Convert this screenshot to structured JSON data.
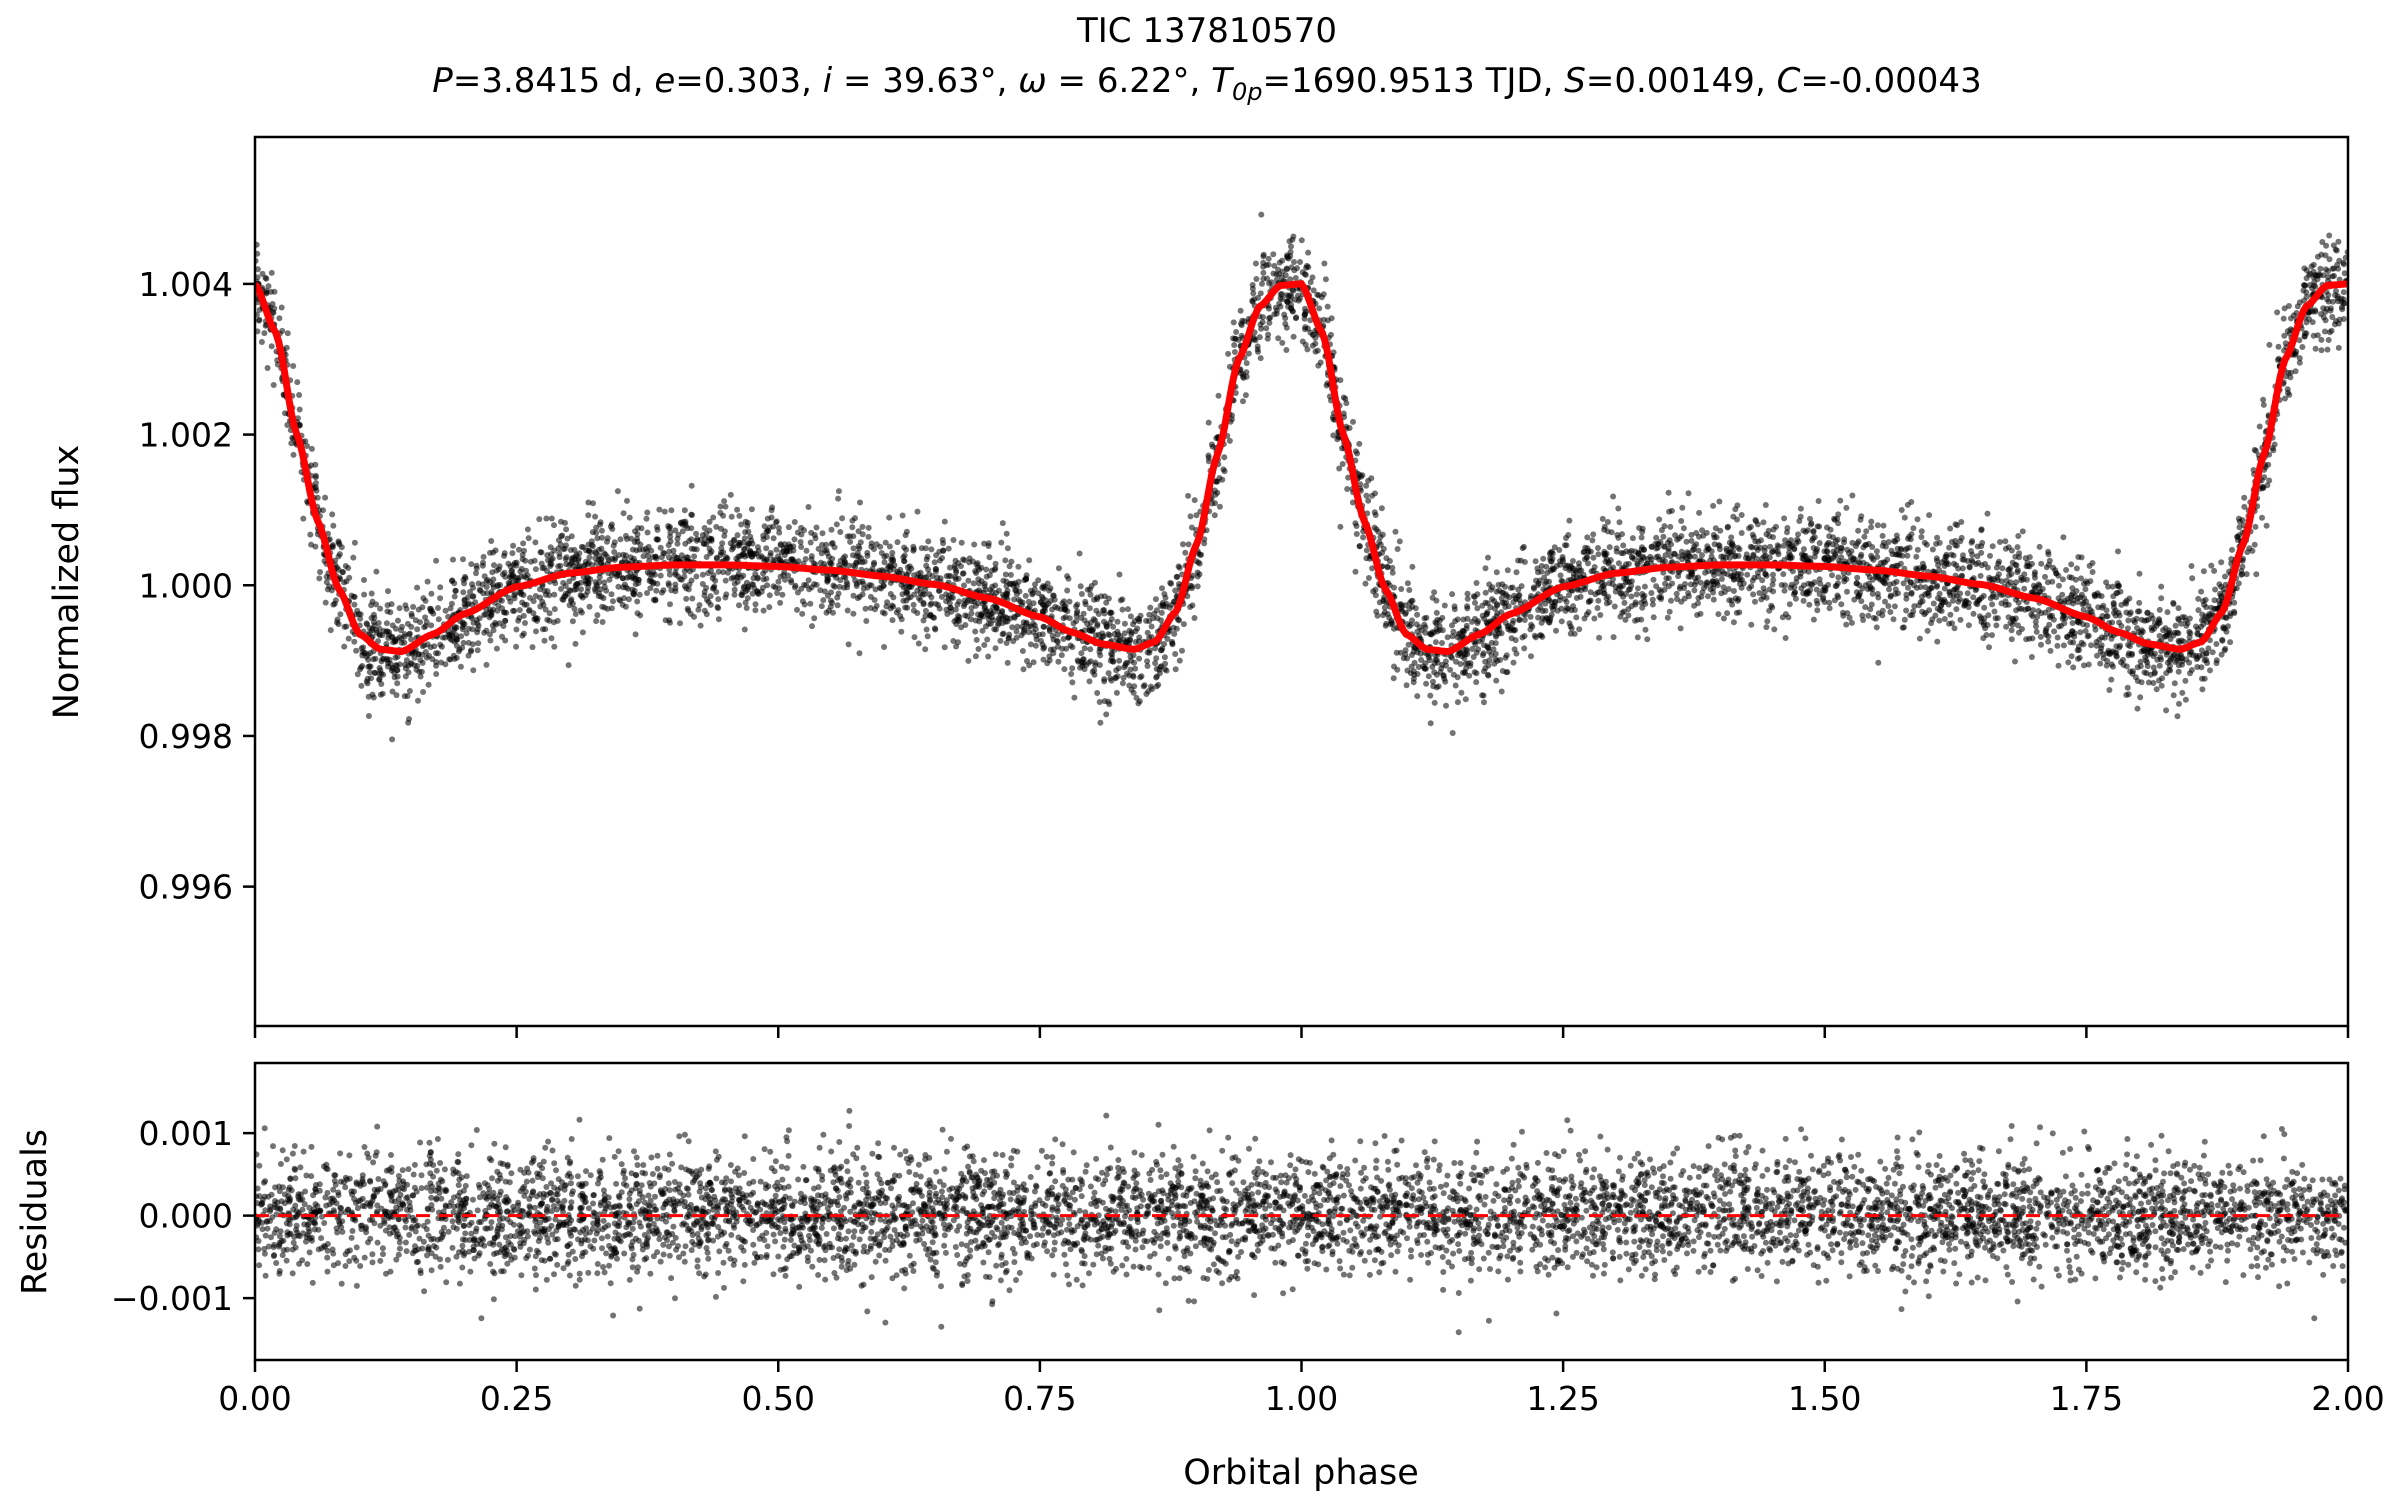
{
  "chart_data": [
    {
      "type": "scatter",
      "panel": "light-curve",
      "title": "TIC 137810570",
      "subtitle": {
        "P": "3.8415",
        "P_unit": "d",
        "e": "0.303",
        "i": "39.63°",
        "omega": "6.22°",
        "T0p": "1690.9513",
        "T0p_unit": "TJD",
        "S": "0.00149",
        "C": "-0.00043"
      },
      "xlabel": "Orbital phase",
      "ylabel": "Normalized flux",
      "xlim": [
        0.0,
        2.0
      ],
      "ylim": [
        0.99415,
        1.00595
      ],
      "yticks": [
        "0.996",
        "0.998",
        "1.000",
        "1.002",
        "1.004"
      ],
      "grid": false,
      "series": [
        {
          "kind": "scatter",
          "color": "#000000",
          "scatter_sigma": 0.00035,
          "model_curve": {
            "x": [
              0.0,
              0.02,
              0.04,
              0.06,
              0.08,
              0.1,
              0.12,
              0.14,
              0.17,
              0.2,
              0.25,
              0.3,
              0.35,
              0.4,
              0.45,
              0.5,
              0.55,
              0.6,
              0.65,
              0.7,
              0.75,
              0.78,
              0.81,
              0.84,
              0.86,
              0.88,
              0.9,
              0.92,
              0.94,
              0.96,
              0.98,
              1.0
            ],
            "y": [
              1.004,
              1.00335,
              1.002,
              1.00085,
              0.99995,
              0.99935,
              0.99915,
              0.99912,
              0.99935,
              0.99962,
              0.99998,
              1.00016,
              1.00024,
              1.00027,
              1.00027,
              1.00025,
              1.0002,
              1.00012,
              1.00001,
              0.99983,
              0.99958,
              0.99938,
              0.99922,
              0.99915,
              0.99925,
              0.99965,
              1.00055,
              1.00175,
              1.003,
              1.0037,
              1.00398,
              1.004
            ]
          }
        },
        {
          "kind": "line",
          "color": "#ff0000",
          "note_model": "same curve as model_curve, repeated for phase 1.0–2.0"
        }
      ]
    },
    {
      "type": "scatter",
      "panel": "residuals",
      "xlabel": "Orbital phase",
      "ylabel": "Residuals",
      "xlim": [
        0.0,
        2.0
      ],
      "ylim": [
        -0.00175,
        0.00185
      ],
      "xticks": [
        "0.00",
        "0.25",
        "0.50",
        "0.75",
        "1.00",
        "1.25",
        "1.50",
        "1.75",
        "2.00"
      ],
      "yticks": [
        "−0.001",
        "0.000",
        "0.001"
      ],
      "grid": false,
      "residual_sigma": 0.00036,
      "zero_line": {
        "value": 0.0,
        "color": "#ff0000",
        "style": "dashed"
      }
    }
  ]
}
